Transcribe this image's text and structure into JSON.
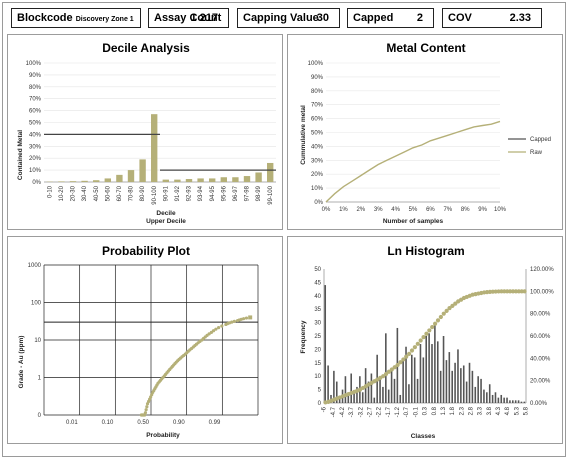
{
  "header": {
    "blockcode": {
      "label": "Blockcode",
      "value": "Discovery Zone 1"
    },
    "assay_count": {
      "label": "Assay Count",
      "value": "1 217"
    },
    "capping_value": {
      "label": "Capping Value",
      "value": "30"
    },
    "capped": {
      "label": "Capped",
      "value": "2"
    },
    "cov": {
      "label": "COV",
      "value": "2.33"
    }
  },
  "chart_data": [
    {
      "type": "bar",
      "title": "Decile Analysis",
      "ylabel": "Contained Metal",
      "xlabel": "Decile",
      "xlabel2": "Upper Decile",
      "ylim": [
        0,
        100
      ],
      "yticks": [
        "0%",
        "10%",
        "20%",
        "30%",
        "40%",
        "50%",
        "60%",
        "70%",
        "80%",
        "90%",
        "100%"
      ],
      "categories": [
        "0-10",
        "10-20",
        "20-30",
        "30-40",
        "40-50",
        "50-60",
        "60-70",
        "70-80",
        "80-90",
        "90-100",
        "90-91",
        "91-92",
        "92-93",
        "93-94",
        "94-95",
        "95-96",
        "96-97",
        "97-98",
        "98-99",
        "99-100"
      ],
      "values": [
        0.3,
        0.5,
        0.7,
        1,
        1.5,
        3,
        6,
        10,
        19,
        57,
        2,
        2,
        2.5,
        3,
        3,
        4,
        4,
        5,
        8,
        16
      ],
      "reference_lines": [
        {
          "value": 40,
          "from": "0-10",
          "to": "90-100"
        },
        {
          "value": 10,
          "from": "90-91",
          "to": "99-100"
        }
      ]
    },
    {
      "type": "line",
      "title": "Metal Content",
      "ylabel": "Cummulative metal",
      "xlabel": "Number of samples",
      "xlim": [
        0,
        10
      ],
      "ylim": [
        0,
        100
      ],
      "xticks": [
        "0%",
        "1%",
        "2%",
        "3%",
        "4%",
        "5%",
        "6%",
        "7%",
        "8%",
        "9%",
        "10%"
      ],
      "yticks": [
        "0%",
        "10%",
        "20%",
        "30%",
        "40%",
        "50%",
        "60%",
        "70%",
        "80%",
        "90%",
        "100%"
      ],
      "legend": "right",
      "series": [
        {
          "name": "Capped",
          "color": "#555555",
          "x": [],
          "y": []
        },
        {
          "name": "Raw",
          "color": "#b5b078",
          "x": [
            0,
            0.5,
            1,
            1.5,
            2,
            2.5,
            3,
            3.5,
            4,
            4.5,
            5,
            5.5,
            6,
            6.5,
            7,
            7.5,
            8,
            8.5,
            9,
            9.5,
            10
          ],
          "y": [
            0,
            6,
            11,
            15,
            19,
            23,
            27,
            30,
            33,
            36,
            39,
            41,
            44,
            46,
            48,
            50,
            52,
            54,
            55,
            56,
            58
          ]
        }
      ]
    },
    {
      "type": "scatter",
      "title": "Probability Plot",
      "ylabel": "Grade - Au (ppm)",
      "xlabel": "Probability",
      "xticks": [
        "0.01",
        "0.10",
        "0.50",
        "0.90",
        "0.99"
      ],
      "yticks": [
        "0",
        "1",
        "10",
        "100",
        "1000"
      ],
      "reference_line": 30,
      "color": "#b5b078",
      "points": [
        {
          "p": 0.39,
          "g": 0.02
        },
        {
          "p": 0.42,
          "g": 0.08
        },
        {
          "p": 0.46,
          "g": 0.2
        },
        {
          "p": 0.52,
          "g": 0.4
        },
        {
          "p": 0.58,
          "g": 0.7
        },
        {
          "p": 0.65,
          "g": 1.1
        },
        {
          "p": 0.72,
          "g": 1.8
        },
        {
          "p": 0.78,
          "g": 2.8
        },
        {
          "p": 0.84,
          "g": 4.2
        },
        {
          "p": 0.89,
          "g": 6.5
        },
        {
          "p": 0.93,
          "g": 10
        },
        {
          "p": 0.96,
          "g": 16
        },
        {
          "p": 0.985,
          "g": 26
        },
        {
          "p": 0.994,
          "g": 33
        },
        {
          "p": 0.998,
          "g": 40
        }
      ]
    },
    {
      "type": "bar",
      "title": "Ln Histogram",
      "ylabel": "Frequency",
      "xlabel": "Classes",
      "ylim": [
        0,
        50
      ],
      "y2lim": [
        0,
        120
      ],
      "yticks": [
        "0",
        "5",
        "10",
        "15",
        "20",
        "25",
        "30",
        "35",
        "40",
        "45",
        "50"
      ],
      "y2ticks": [
        "0.00%",
        "20.00%",
        "40.00%",
        "60.00%",
        "80.00%",
        "100.00%",
        "120.00%"
      ],
      "xticks": [
        "-6",
        "-4.7",
        "-4.2",
        "-3.7",
        "-3.2",
        "-2.7",
        "-2.2",
        "-1.7",
        "-1.2",
        "-0.7",
        "-0.1",
        "0.3",
        "0.8",
        "1.3",
        "1.8",
        "2.3",
        "2.8",
        "3.3",
        "3.8",
        "4.3",
        "4.8",
        "5.3",
        "5.8"
      ],
      "values": [
        44,
        14,
        3,
        12,
        8,
        2,
        5,
        10,
        3,
        11,
        4,
        6,
        10,
        4,
        13,
        8,
        11,
        2,
        18,
        9,
        6,
        26,
        5,
        13,
        9,
        28,
        3,
        16,
        21,
        7,
        18,
        17,
        9,
        22,
        17,
        25,
        26,
        22,
        30,
        23,
        12,
        25,
        16,
        19,
        12,
        15,
        20,
        13,
        14,
        8,
        15,
        12,
        6,
        10,
        9,
        5,
        4,
        7,
        3,
        4,
        2,
        3,
        2,
        2,
        1,
        1,
        1,
        1,
        0.5,
        0.5
      ],
      "cumulative_color": "#b5b078",
      "cumulative": [
        0.5,
        1,
        2,
        3,
        4,
        5,
        6,
        7,
        8,
        9,
        10,
        11,
        12,
        13.5,
        15,
        16.5,
        18,
        19.5,
        21,
        22.5,
        24,
        26,
        28,
        30,
        32,
        34,
        36.5,
        39,
        41.5,
        44,
        47,
        50,
        53,
        56,
        59,
        62,
        65,
        68,
        71,
        74,
        77,
        80,
        82.5,
        85,
        87,
        89,
        91,
        92.5,
        94,
        95,
        96,
        97,
        97.5,
        98,
        98.5,
        99,
        99.3,
        99.5,
        99.7,
        99.8,
        99.9,
        100,
        100,
        100,
        100,
        100,
        100,
        100,
        100,
        100
      ]
    }
  ]
}
